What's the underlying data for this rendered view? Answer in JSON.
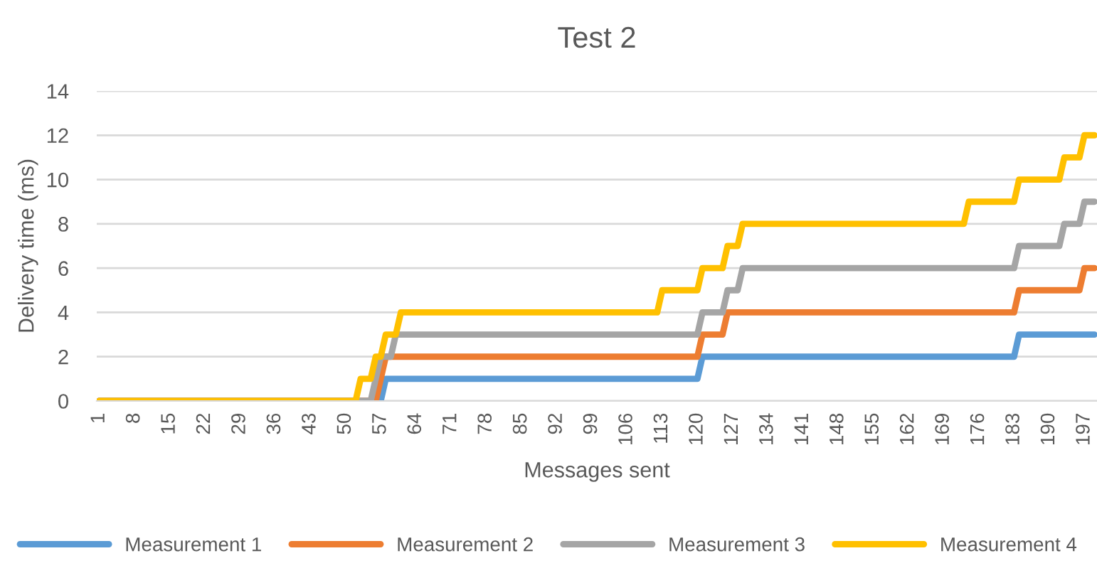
{
  "chart_data": {
    "type": "line",
    "title": "Test 2",
    "xlabel": "Messages sent",
    "ylabel": "Delivery time (ms)",
    "xlim": [
      0.5,
      199.5
    ],
    "xticks": [
      1,
      8,
      15,
      22,
      29,
      36,
      43,
      50,
      57,
      64,
      71,
      78,
      85,
      92,
      99,
      106,
      113,
      120,
      127,
      134,
      141,
      148,
      155,
      162,
      169,
      176,
      183,
      190,
      197
    ],
    "ylim": [
      0,
      14
    ],
    "yticks": [
      0,
      2,
      4,
      6,
      8,
      10,
      12,
      14
    ],
    "grid": "y",
    "legend": "bottom",
    "marker": "none",
    "line_style": "solid",
    "series": [
      {
        "name": "Measurement 1",
        "color": "#5b9bd5",
        "x": [
          1,
          57,
          58,
          120,
          121,
          183,
          184,
          199
        ],
        "values": [
          0,
          0,
          1,
          1,
          2,
          2,
          3,
          3
        ]
      },
      {
        "name": "Measurement 2",
        "color": "#ed7d31",
        "x": [
          1,
          56,
          58,
          120,
          121,
          125,
          126,
          183,
          184,
          196,
          197,
          199
        ],
        "values": [
          0,
          0,
          2,
          2,
          3,
          3,
          4,
          4,
          5,
          5,
          6,
          6
        ]
      },
      {
        "name": "Measurement 3",
        "color": "#a5a5a5",
        "x": [
          1,
          55,
          57,
          59,
          60,
          120,
          121,
          125,
          126,
          128,
          129,
          183,
          184,
          192,
          193,
          196,
          197,
          199
        ],
        "values": [
          0,
          0,
          2,
          2,
          3,
          3,
          4,
          4,
          5,
          5,
          6,
          6,
          7,
          7,
          8,
          8,
          9,
          9
        ]
      },
      {
        "name": "Measurement 4",
        "color": "#ffc000",
        "x": [
          1,
          52,
          53,
          55,
          56,
          57,
          58,
          60,
          61,
          112,
          113,
          120,
          121,
          125,
          126,
          128,
          129,
          173,
          174,
          183,
          184,
          192,
          193,
          196,
          197,
          199
        ],
        "values": [
          0,
          0,
          1,
          1,
          2,
          2,
          3,
          3,
          4,
          4,
          5,
          5,
          6,
          6,
          7,
          7,
          8,
          8,
          9,
          9,
          10,
          10,
          11,
          11,
          12,
          12
        ]
      }
    ]
  }
}
